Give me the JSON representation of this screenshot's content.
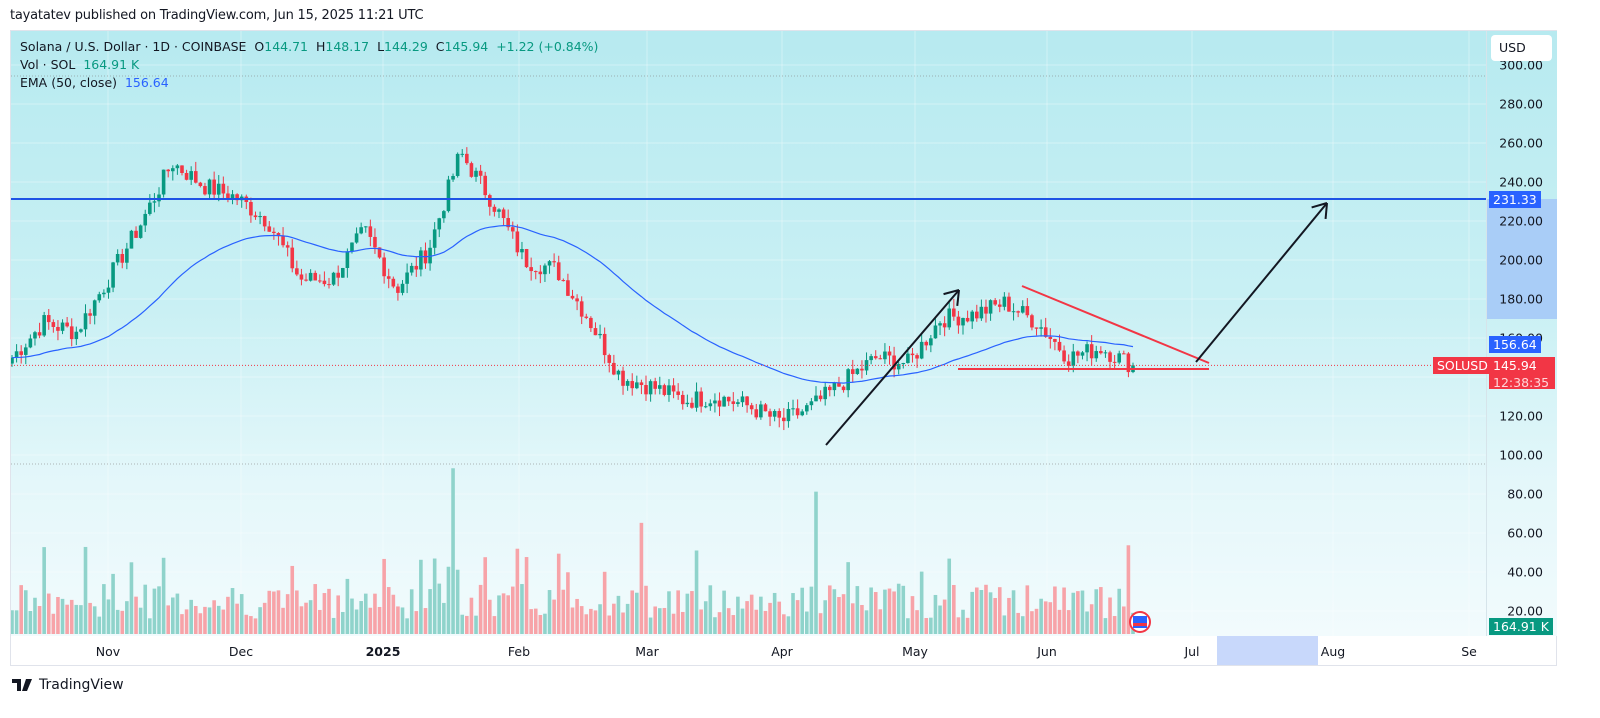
{
  "header": {
    "published": "tayatatev published on TradingView.com, Jun 15, 2025 11:21 UTC"
  },
  "legend": {
    "symbol": "Solana / U.S. Dollar · 1D · COINBASE",
    "o_label": "O",
    "o": "144.71",
    "h_label": "H",
    "h": "148.17",
    "l_label": "L",
    "l": "144.29",
    "c_label": "C",
    "c": "145.94",
    "change": "+1.22 (+0.84%)",
    "vol_label": "Vol · SOL",
    "vol": "164.91 K",
    "ema_label": "EMA (50, close)",
    "ema": "156.64"
  },
  "axis": {
    "currency": "USD",
    "price_ticks": [
      "300.00",
      "280.00",
      "260.00",
      "240.00",
      "220.00",
      "200.00",
      "180.00",
      "160.00",
      "120.00",
      "100.00"
    ],
    "volume_ticks": [
      "80.00",
      "60.00",
      "40.00",
      "20.00"
    ],
    "resistance_tag": "231.33",
    "ema_tag": "156.64",
    "price_tag": "145.94",
    "countdown": "12:38:35",
    "symbol_tag": "SOLUSD",
    "volume_tag": "164.91 K"
  },
  "time_axis": [
    "Nov",
    "Dec",
    "2025",
    "Feb",
    "Mar",
    "Apr",
    "May",
    "Jun",
    "Jul",
    "Aug",
    "Se"
  ],
  "footer": {
    "brand": "TradingView"
  },
  "colors": {
    "up": "#089981",
    "down": "#f23645",
    "ema": "#2962ff",
    "resistance": "#1e53e5",
    "pattern": "#f23645",
    "arrow": "#131722"
  },
  "chart_data": {
    "type": "candlestick",
    "title": "Solana / U.S. Dollar · 1D · COINBASE",
    "xlabel": "",
    "ylabel": "USD",
    "ylim": [
      90,
      305
    ],
    "x_ticks": [
      "Nov",
      "Dec",
      "2025",
      "Feb",
      "Mar",
      "Apr",
      "May",
      "Jun",
      "Jul",
      "Aug",
      "Sep"
    ],
    "last": {
      "open": 144.71,
      "high": 148.17,
      "low": 144.29,
      "close": 145.94,
      "change": 1.22,
      "change_pct": 0.84
    },
    "indicators": {
      "EMA_50_close": 156.64,
      "volume_last_K": 164.91
    },
    "annotations": {
      "horizontal_resistance": 231.33,
      "descending_triangle": {
        "upper_start": [
          "2025-05-23",
          187
        ],
        "upper_end": [
          "2025-07-01",
          145
        ],
        "support": 140.5
      },
      "arrow_1": {
        "from": [
          "2025-04-07",
          105
        ],
        "to": [
          "2025-05-09",
          185
        ]
      },
      "arrow_2": {
        "from": [
          "2025-06-30",
          147
        ],
        "to": [
          "2025-07-31",
          230
        ]
      }
    },
    "weekly_closes_approx": [
      {
        "date": "2024-10-14",
        "close": 150
      },
      {
        "date": "2024-10-21",
        "close": 168
      },
      {
        "date": "2024-10-28",
        "close": 163
      },
      {
        "date": "2024-11-04",
        "close": 190
      },
      {
        "date": "2024-11-11",
        "close": 218
      },
      {
        "date": "2024-11-18",
        "close": 250
      },
      {
        "date": "2024-11-25",
        "close": 238
      },
      {
        "date": "2024-12-02",
        "close": 232
      },
      {
        "date": "2024-12-09",
        "close": 220
      },
      {
        "date": "2024-12-16",
        "close": 190
      },
      {
        "date": "2024-12-23",
        "close": 190
      },
      {
        "date": "2024-12-30",
        "close": 215
      },
      {
        "date": "2025-01-06",
        "close": 185
      },
      {
        "date": "2025-01-13",
        "close": 205
      },
      {
        "date": "2025-01-20",
        "close": 255
      },
      {
        "date": "2025-01-27",
        "close": 230
      },
      {
        "date": "2025-02-03",
        "close": 200
      },
      {
        "date": "2025-02-10",
        "close": 195
      },
      {
        "date": "2025-02-17",
        "close": 170
      },
      {
        "date": "2025-02-24",
        "close": 140
      },
      {
        "date": "2025-03-03",
        "close": 135
      },
      {
        "date": "2025-03-10",
        "close": 128
      },
      {
        "date": "2025-03-17",
        "close": 130
      },
      {
        "date": "2025-03-24",
        "close": 125
      },
      {
        "date": "2025-03-31",
        "close": 117
      },
      {
        "date": "2025-04-07",
        "close": 125
      },
      {
        "date": "2025-04-14",
        "close": 138
      },
      {
        "date": "2025-04-21",
        "close": 150
      },
      {
        "date": "2025-04-28",
        "close": 147
      },
      {
        "date": "2025-05-05",
        "close": 170
      },
      {
        "date": "2025-05-12",
        "close": 172
      },
      {
        "date": "2025-05-19",
        "close": 178
      },
      {
        "date": "2025-05-26",
        "close": 168
      },
      {
        "date": "2025-06-02",
        "close": 150
      },
      {
        "date": "2025-06-09",
        "close": 155
      },
      {
        "date": "2025-06-15",
        "close": 145.94
      }
    ],
    "volume_peaks_K": [
      {
        "date": "2025-01-18",
        "value": 85
      },
      {
        "date": "2025-04-07",
        "value": 73
      },
      {
        "date": "2025-02-28",
        "value": 57
      }
    ]
  }
}
